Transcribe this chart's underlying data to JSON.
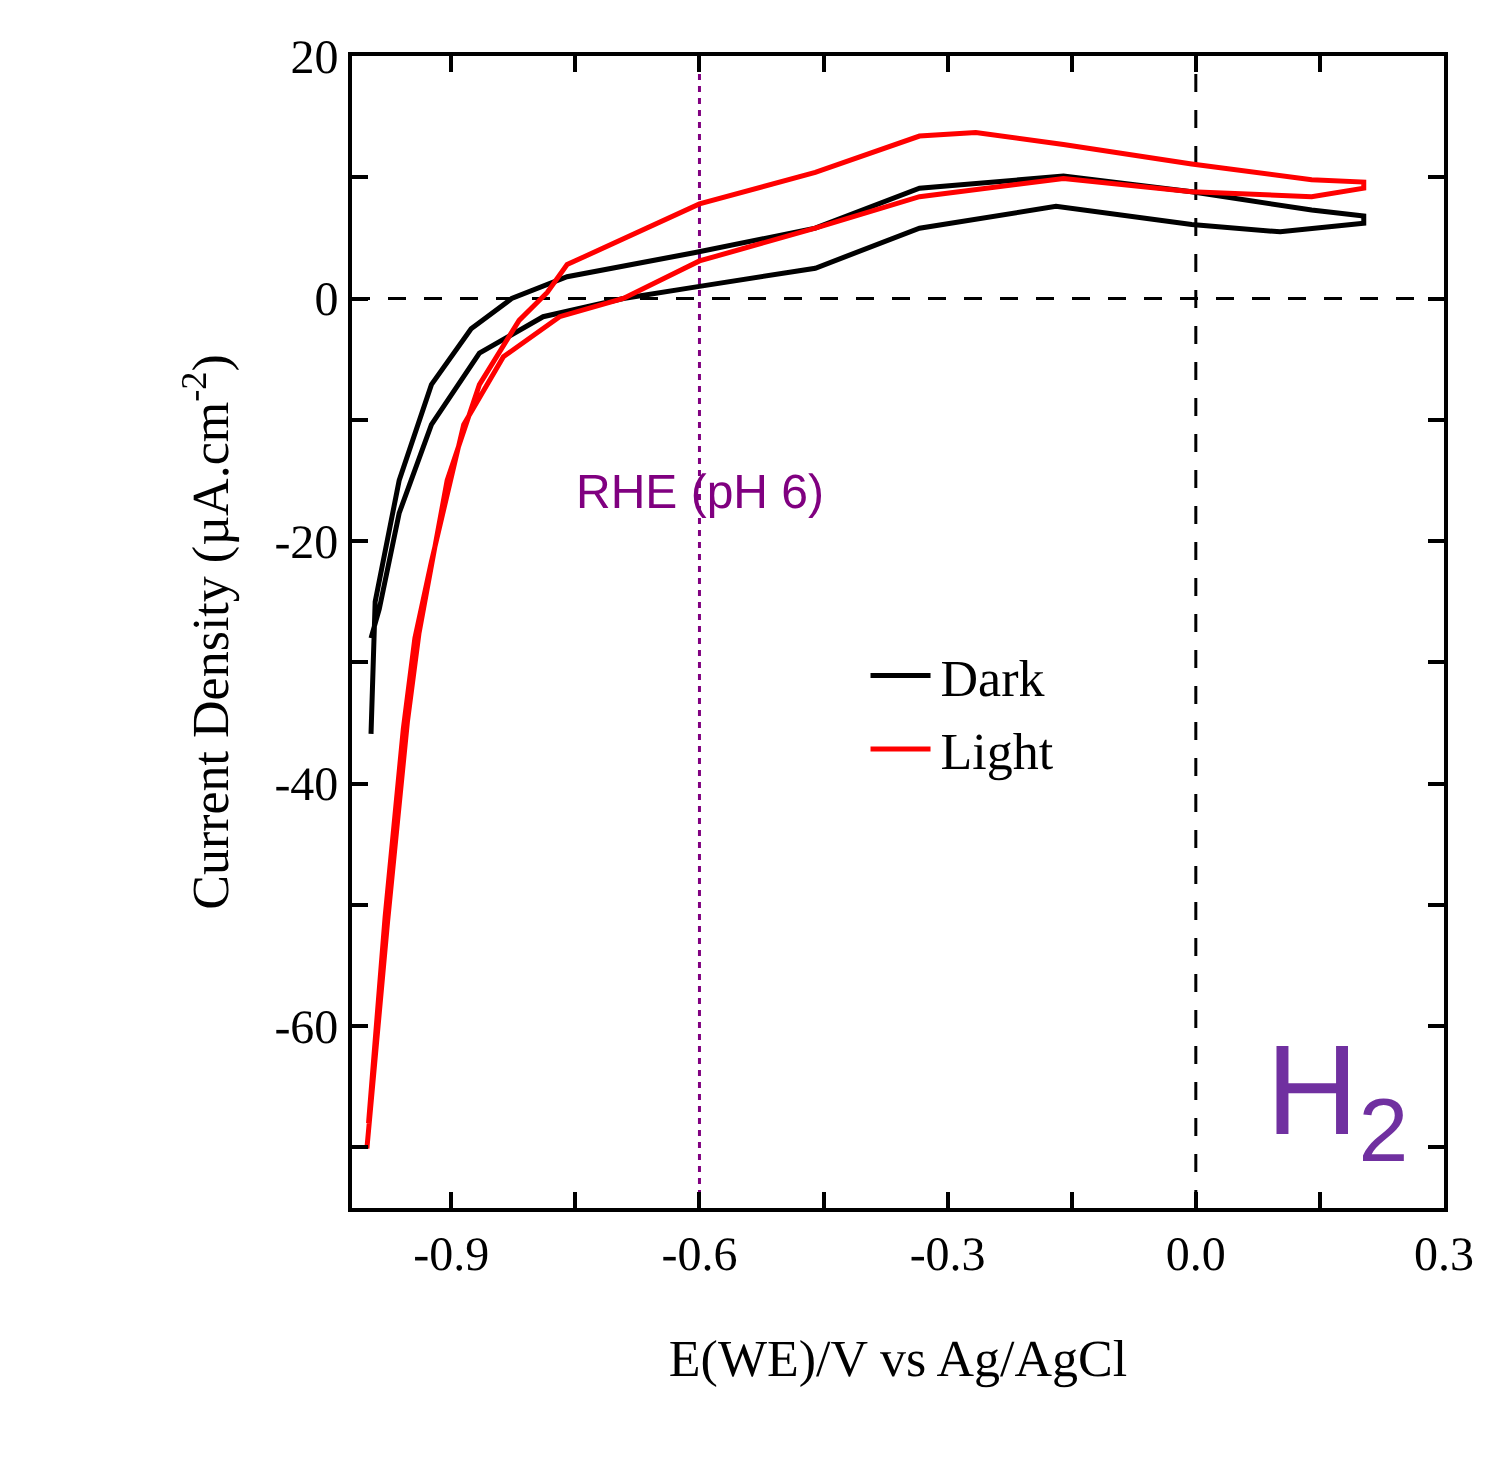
{
  "chart_data": {
    "type": "line",
    "xlabel": "E(WE)/V vs Ag/AgCl",
    "ylabel": "Current Density (µA.cm$^{-2}$)",
    "xlim": [
      -1.02,
      0.3
    ],
    "ylim": [
      -75,
      20
    ],
    "xticks": [
      {
        "value": -0.9,
        "label": "-0.9"
      },
      {
        "value": -0.75,
        "label": null
      },
      {
        "value": -0.6,
        "label": "-0.6"
      },
      {
        "value": -0.45,
        "label": null
      },
      {
        "value": -0.3,
        "label": "-0.3"
      },
      {
        "value": -0.15,
        "label": null
      },
      {
        "value": 0.0,
        "label": "0.0"
      },
      {
        "value": 0.15,
        "label": null
      },
      {
        "value": 0.3,
        "label": "0.3"
      }
    ],
    "yticks": [
      {
        "value": -70,
        "label": null
      },
      -60,
      {
        "value": -50,
        "label": null
      },
      -40,
      {
        "value": -30,
        "label": null
      },
      -20,
      {
        "value": -10,
        "label": null
      },
      0,
      {
        "value": 10,
        "label": null
      },
      20
    ],
    "grid": false,
    "legend": "center",
    "line_style": "solid",
    "marker": "none",
    "series": [
      {
        "name": "Dark",
        "color": "#000000",
        "x": [
          -0.997,
          -0.992,
          -0.963,
          -0.924,
          -0.876,
          -0.827,
          -0.76,
          -0.605,
          -0.46,
          -0.334,
          -0.16,
          -0.005,
          0.14,
          0.203,
          0.203,
          0.102,
          -0.005,
          -0.169,
          -0.334,
          -0.46,
          -0.6,
          -0.692,
          -0.789,
          -0.866,
          -0.924,
          -0.963,
          -0.987,
          -0.997
        ],
        "values": [
          -35.9,
          -25,
          -15,
          -7.1,
          -2.5,
          0,
          1.8,
          3.8,
          5.8,
          9.1,
          10.1,
          8.8,
          7.3,
          6.8,
          6.2,
          5.5,
          6.1,
          7.6,
          5.8,
          2.5,
          1.0,
          0,
          -1.5,
          -4.5,
          -10.4,
          -17.7,
          -25.6,
          -28
        ]
      },
      {
        "name": "Light",
        "color": "#ff0000",
        "x": [
          -1.002,
          -0.977,
          -0.953,
          -0.939,
          -0.905,
          -0.866,
          -0.818,
          -0.784,
          -0.76,
          -0.6,
          -0.46,
          -0.334,
          -0.266,
          -0.16,
          -0.005,
          0.14,
          0.203,
          0.203,
          0.14,
          -0.005,
          -0.16,
          -0.334,
          -0.46,
          -0.6,
          -0.692,
          -0.769,
          -0.837,
          -0.885,
          -0.924,
          -0.944,
          -0.958,
          -0.98,
          -1.0
        ],
        "values": [
          -70.1,
          -51.4,
          -34.9,
          -27.6,
          -15,
          -7.1,
          -1.8,
          0.5,
          2.8,
          7.8,
          10.4,
          13.4,
          13.7,
          12.7,
          11.1,
          9.8,
          9.6,
          9.1,
          8.4,
          8.8,
          9.9,
          8.4,
          5.8,
          3.1,
          0,
          -1.5,
          -4.8,
          -10.4,
          -21.7,
          -28,
          -35.5,
          -51,
          -68
        ]
      }
    ],
    "ref_lines": [
      {
        "axis": "y",
        "value": 0,
        "color": "#000000",
        "line_style": "dashed"
      },
      {
        "axis": "x",
        "value": 0,
        "color": "#000000",
        "line_style": "dashed"
      },
      {
        "axis": "x",
        "value": -0.6,
        "label": "RHE (pH 6)",
        "color": "#800080",
        "line_style": "dotted"
      }
    ],
    "annotations": [
      "H$_{2}$"
    ]
  }
}
